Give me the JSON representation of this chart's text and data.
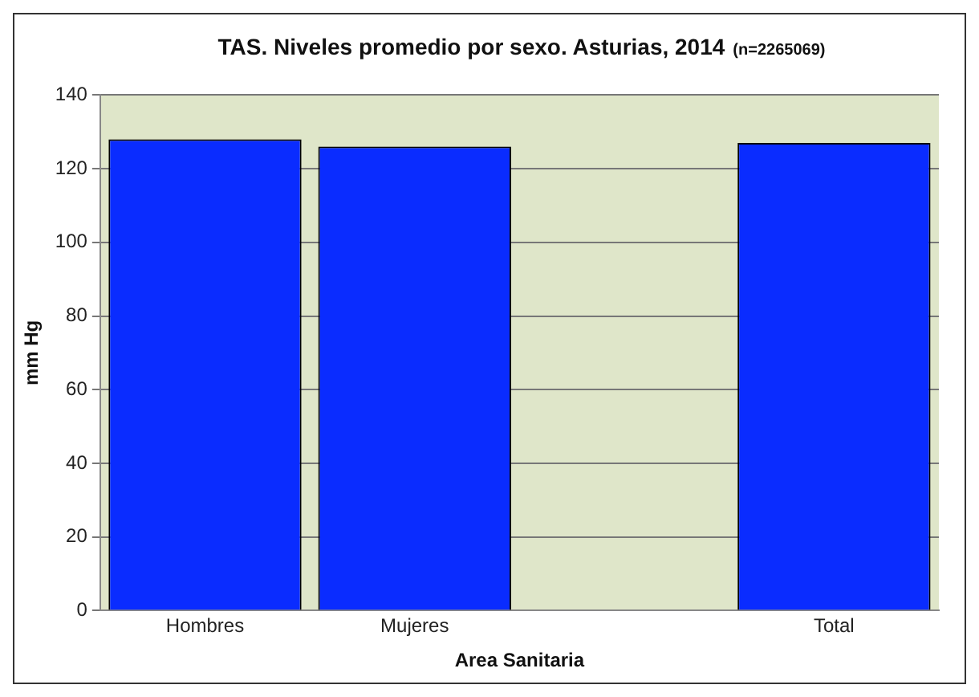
{
  "chart_data": {
    "type": "bar",
    "title": "TAS. Niveles promedio por sexo. Asturias, 2014",
    "subtitle": "(n=2265069)",
    "xlabel": "Area Sanitaria",
    "ylabel": "mm Hg",
    "categories": [
      "Hombres",
      "Mujeres",
      null,
      "Total"
    ],
    "values": [
      128,
      126,
      null,
      127
    ],
    "color": "#0a2cff",
    "ylim": [
      0,
      140
    ],
    "yticks": [
      0,
      20,
      40,
      60,
      80,
      100,
      120,
      140
    ],
    "grid": "y",
    "legend": false
  }
}
